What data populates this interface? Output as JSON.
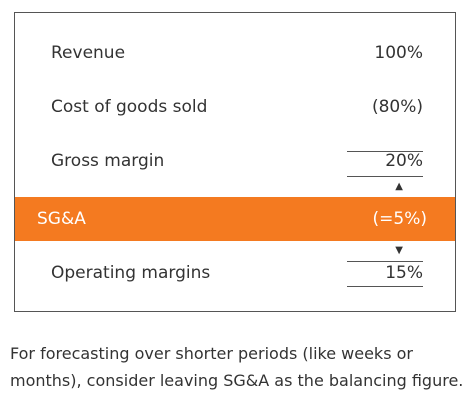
{
  "table": {
    "rows": [
      {
        "label": "Revenue",
        "value": "100%"
      },
      {
        "label": "Cost of goods sold",
        "value": "(80%)"
      },
      {
        "label": "Gross margin",
        "value": "20%"
      },
      {
        "label": "SG&A",
        "value": "(=5%)"
      },
      {
        "label": "Operating margins",
        "value": "15%"
      }
    ]
  },
  "caption": {
    "lines": [
      "For forecasting over shorter periods (like weeks or",
      "months), consider leaving SG&A as the balancing figure."
    ]
  }
}
